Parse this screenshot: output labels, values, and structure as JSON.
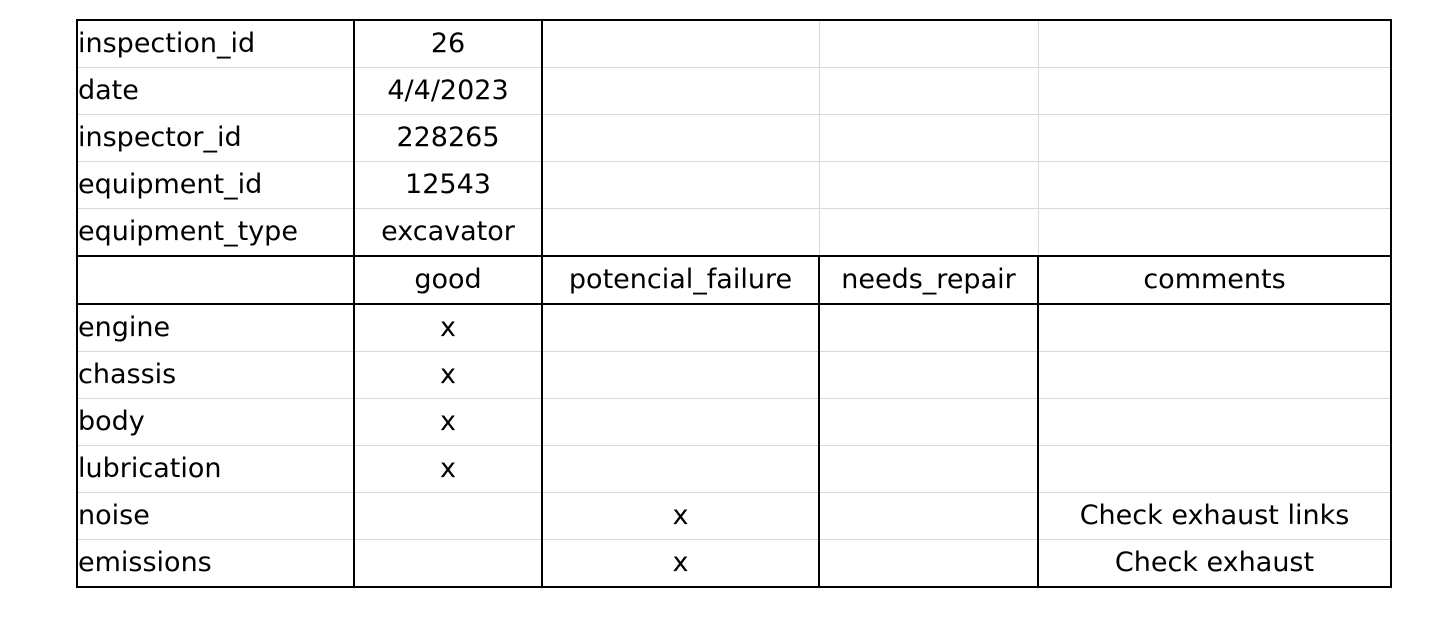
{
  "meta_rows": [
    {
      "label": "inspection_id",
      "value": "26"
    },
    {
      "label": "date",
      "value": "4/4/2023"
    },
    {
      "label": "inspector_id",
      "value": "228265"
    },
    {
      "label": "equipment_id",
      "value": "12543"
    },
    {
      "label": "equipment_type",
      "value": "excavator"
    }
  ],
  "header": {
    "col0": "",
    "good": "good",
    "potential_failure": "potencial_failure",
    "needs_repair": "needs_repair",
    "comments": "comments"
  },
  "status_rows": [
    {
      "component": "engine",
      "good": "x",
      "potential_failure": "",
      "needs_repair": "",
      "comments": ""
    },
    {
      "component": "chassis",
      "good": "x",
      "potential_failure": "",
      "needs_repair": "",
      "comments": ""
    },
    {
      "component": "body",
      "good": "x",
      "potential_failure": "",
      "needs_repair": "",
      "comments": ""
    },
    {
      "component": "lubrication",
      "good": "x",
      "potential_failure": "",
      "needs_repair": "",
      "comments": ""
    },
    {
      "component": "noise",
      "good": "",
      "potential_failure": "x",
      "needs_repair": "",
      "comments": "Check exhaust links"
    },
    {
      "component": "emissions",
      "good": "",
      "potential_failure": "x",
      "needs_repair": "",
      "comments": "Check exhaust"
    }
  ]
}
